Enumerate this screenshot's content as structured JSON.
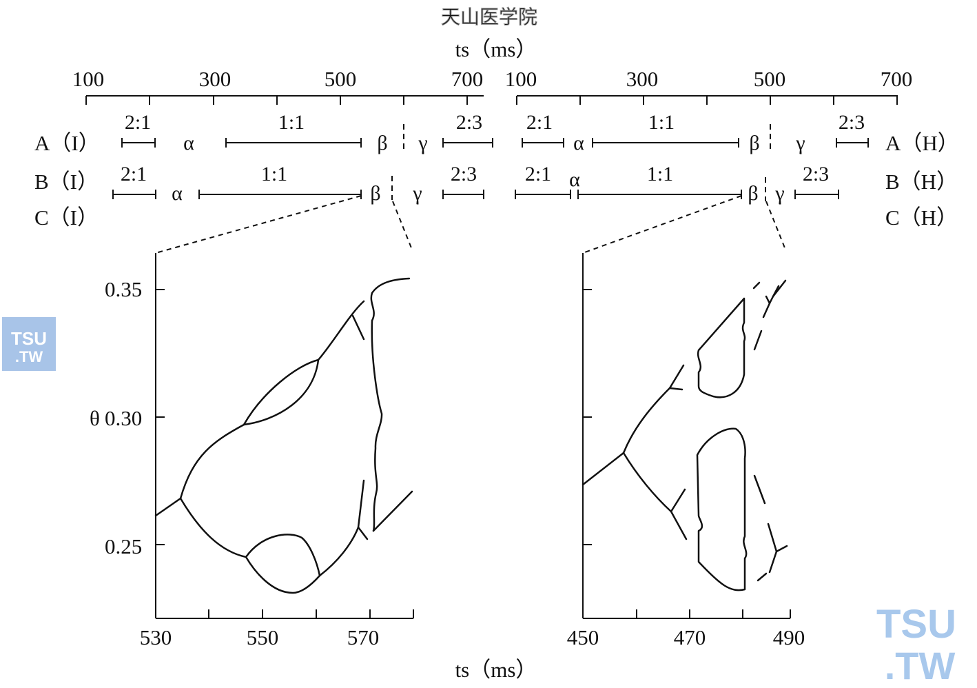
{
  "watermark_top": "天山医学院",
  "watermark_badge": {
    "line1": "TSU",
    "line2": ".TW",
    "color": "#a8c4e8",
    "text_color": "#ffffff"
  },
  "watermark_corner": {
    "line1": "TSU",
    "line2": ".TW",
    "color": "#a8c8ec"
  },
  "top_axis": {
    "label": "ts（ms）",
    "left_ticks": [
      "100",
      "300",
      "500",
      "700"
    ],
    "right_ticks": [
      "100",
      "300",
      "500",
      "700"
    ]
  },
  "rows_left": [
    "A（I）",
    "B（I）",
    "C（I）"
  ],
  "rows_right": [
    "A（H）",
    "B（H）",
    "C（H）"
  ],
  "regions": {
    "r21": "2:1",
    "r11": "1:1",
    "r23": "2:3",
    "alpha": "α",
    "beta": "β",
    "gamma": "γ"
  },
  "left_panel": {
    "y_axis_symbol": "θ",
    "y_ticks": [
      "0.35",
      "0.30",
      "0.25"
    ],
    "x_ticks": [
      "530",
      "550",
      "570"
    ]
  },
  "right_panel": {
    "x_ticks": [
      "450",
      "470",
      "490"
    ]
  },
  "bottom_axis": {
    "label": "ts（ms）"
  }
}
